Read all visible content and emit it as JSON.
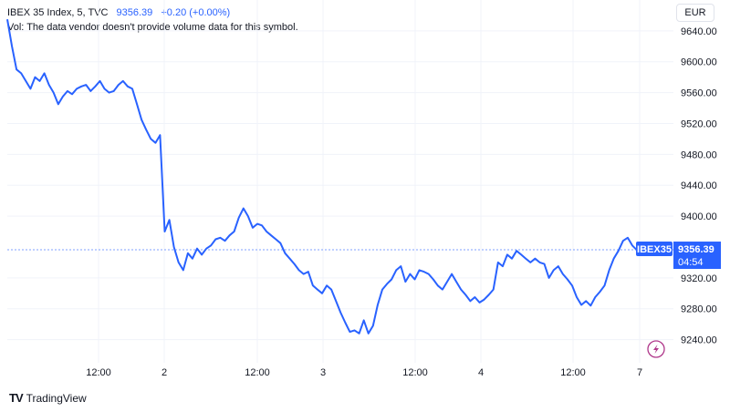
{
  "header": {
    "symbol_line": "IBEX 35 Index, 5, TVC",
    "price": "9356.39",
    "change": "+0.20 (+0.00%)",
    "volume_note": "Vol: The data vendor doesn't provide volume data for this symbol."
  },
  "currency_button": "EUR",
  "price_tag": {
    "symbol": "IBEX35",
    "price": "9356.39",
    "countdown": "04:54"
  },
  "brand": {
    "name": "TradingView",
    "logo_text": "TV"
  },
  "colors": {
    "line": "#2962ff",
    "grid": "#f0f3fa",
    "last_price_line": "#2962ff",
    "lightning_icon": "#b0398b"
  },
  "chart_data": {
    "type": "line",
    "series": [
      {
        "values": [
          9655,
          9620,
          9590,
          9585,
          9575,
          9565,
          9580,
          9575,
          9585,
          9570,
          9560,
          9545,
          9555,
          9562,
          9558,
          9565,
          9568,
          9570,
          9562,
          9568,
          9575,
          9565,
          9560,
          9562,
          9570,
          9575,
          9568,
          9565,
          9545,
          9525,
          9512,
          9500,
          9495,
          9505,
          9380,
          9395,
          9360,
          9340,
          9330,
          9352,
          9345,
          9358,
          9350,
          9358,
          9362,
          9370,
          9372,
          9368,
          9375,
          9380,
          9398,
          9410,
          9400,
          9385,
          9390,
          9388,
          9380,
          9375,
          9370,
          9365,
          9352,
          9345,
          9338,
          9330,
          9325,
          9328,
          9310,
          9305,
          9300,
          9310,
          9305,
          9290,
          9275,
          9262,
          9250,
          9252,
          9248,
          9265,
          9248,
          9258,
          9285,
          9305,
          9312,
          9318,
          9330,
          9335,
          9315,
          9325,
          9318,
          9330,
          9328,
          9325,
          9318,
          9310,
          9305,
          9315,
          9325,
          9315,
          9305,
          9298,
          9290,
          9295,
          9288,
          9292,
          9298,
          9305,
          9340,
          9335,
          9350,
          9345,
          9355,
          9350,
          9345,
          9340,
          9345,
          9340,
          9338,
          9320,
          9330,
          9335,
          9325,
          9318,
          9310,
          9295,
          9285,
          9290,
          9284,
          9295,
          9302,
          9310,
          9330,
          9345,
          9355,
          9368,
          9372,
          9362,
          9356
        ]
      }
    ],
    "x_tick_labels": [
      "12:00",
      "2",
      "12:00",
      "3",
      "12:00",
      "4",
      "12:00",
      "7"
    ],
    "y_tick_labels": [
      "9640.00",
      "9600.00",
      "9560.00",
      "9520.00",
      "9480.00",
      "9440.00",
      "9400.00",
      "9320.00",
      "9280.00",
      "9240.00"
    ],
    "y_ticks": [
      9640,
      9600,
      9560,
      9520,
      9480,
      9440,
      9400,
      9320,
      9280,
      9240
    ],
    "ylim": [
      9210,
      9680
    ],
    "last_price": 9356.39,
    "grid": true
  }
}
